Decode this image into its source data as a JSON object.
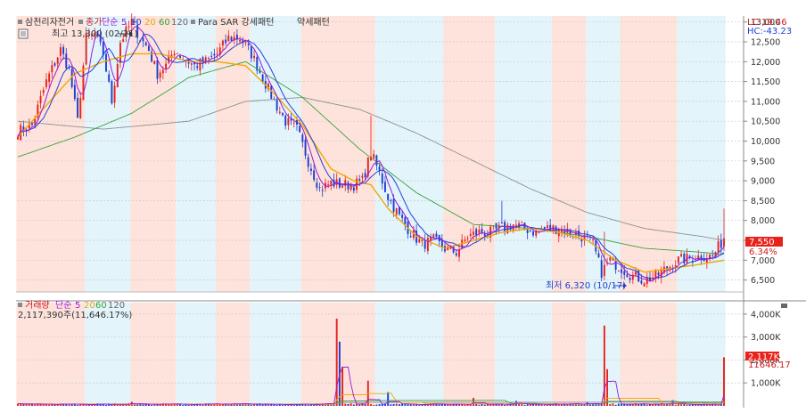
{
  "colors": {
    "band_pink": "#fde3dc",
    "band_blue": "#e3f4fb",
    "up": "#e8211b",
    "down": "#1c3fcf",
    "ma5": "#a018d6",
    "ma10": "#2740d8",
    "ma20": "#f0a800",
    "ma60": "#3aa13a",
    "ma120": "#8f8f8f",
    "grid": "#cccccc",
    "axis_text": "#333333",
    "price_tag": "#e8211b"
  },
  "price_panel": {
    "legend": {
      "stock_name": "삼천리자전거",
      "price_label": "종가",
      "ma_type": "단순",
      "periods": [
        "5",
        "10",
        "20",
        "60",
        "120"
      ],
      "para_sar": "Para SAR 강세패턴",
      "weak_pattern": "약세패턴"
    },
    "high_annotation": "최고 13,300 (02/21)",
    "low_annotation": "최저 6,320 (10/17)",
    "lc_label": "LC:19.46",
    "hc_label": "HC:-43.23",
    "current_price": "7,550",
    "change_pct": "6.34%",
    "y_ticks": [
      "13,000",
      "12,500",
      "12,000",
      "11,500",
      "11,000",
      "10,500",
      "10,000",
      "9,500",
      "9,000",
      "8,500",
      "8,000",
      "7,500",
      "7,000",
      "6,500"
    ]
  },
  "volume_panel": {
    "legend": {
      "title": "거래량",
      "ma_type": "단순",
      "periods": [
        "5",
        "20",
        "60",
        "120"
      ]
    },
    "current_volume": "2,117,390주(11,646.17%)",
    "volume_tag": "2,117K",
    "volume_pct_tag": "11646.17",
    "y_ticks": [
      "4,000K",
      "3,000K",
      "2,000K",
      "1,000K"
    ]
  },
  "chart_data": [
    {
      "type": "candlestick",
      "title": "삼천리자전거",
      "ylim": [
        6200,
        13150
      ],
      "y_ticks": [
        13000,
        12500,
        12000,
        11500,
        11000,
        10500,
        10000,
        9500,
        9000,
        8500,
        8000,
        7500,
        7000,
        6500
      ],
      "series_keypoints": {
        "close": [
          [
            0,
            10250
          ],
          [
            5,
            10400
          ],
          [
            10,
            11500
          ],
          [
            15,
            12300
          ],
          [
            18,
            11800
          ],
          [
            21,
            10500
          ],
          [
            24,
            12600
          ],
          [
            27,
            12700
          ],
          [
            30,
            12200
          ],
          [
            33,
            11000
          ],
          [
            36,
            12500
          ],
          [
            40,
            13000
          ],
          [
            43,
            12600
          ],
          [
            46,
            12300
          ],
          [
            49,
            11700
          ],
          [
            52,
            11900
          ],
          [
            55,
            12300
          ],
          [
            58,
            12100
          ],
          [
            62,
            11900
          ],
          [
            66,
            12000
          ],
          [
            70,
            12200
          ],
          [
            74,
            12600
          ],
          [
            78,
            12600
          ],
          [
            82,
            12200
          ],
          [
            86,
            11600
          ],
          [
            90,
            11000
          ],
          [
            94,
            10500
          ],
          [
            98,
            10300
          ],
          [
            102,
            9500
          ],
          [
            106,
            8800
          ],
          [
            110,
            8950
          ],
          [
            114,
            8900
          ],
          [
            118,
            8900
          ],
          [
            121,
            9000
          ],
          [
            124,
            9700
          ],
          [
            127,
            9200
          ],
          [
            130,
            8600
          ],
          [
            134,
            8100
          ],
          [
            138,
            7700
          ],
          [
            142,
            7400
          ],
          [
            146,
            7500
          ],
          [
            150,
            7300
          ],
          [
            154,
            7200
          ],
          [
            158,
            7600
          ],
          [
            162,
            7700
          ],
          [
            166,
            7700
          ],
          [
            170,
            7800
          ],
          [
            174,
            7900
          ],
          [
            178,
            7800
          ],
          [
            182,
            7700
          ],
          [
            186,
            7800
          ],
          [
            190,
            7800
          ],
          [
            194,
            7700
          ],
          [
            198,
            7600
          ],
          [
            202,
            7400
          ],
          [
            205,
            6700
          ],
          [
            208,
            7000
          ],
          [
            212,
            6800
          ],
          [
            216,
            6600
          ],
          [
            220,
            6500
          ],
          [
            224,
            6600
          ],
          [
            228,
            6800
          ],
          [
            232,
            7000
          ],
          [
            236,
            7050
          ],
          [
            240,
            7100
          ],
          [
            244,
            7100
          ],
          [
            248,
            7550
          ]
        ],
        "ma20": [
          [
            0,
            10100
          ],
          [
            10,
            10900
          ],
          [
            20,
            11700
          ],
          [
            30,
            12000
          ],
          [
            40,
            12200
          ],
          [
            50,
            12200
          ],
          [
            60,
            12000
          ],
          [
            70,
            12000
          ],
          [
            80,
            11900
          ],
          [
            90,
            11200
          ],
          [
            100,
            10400
          ],
          [
            110,
            9300
          ],
          [
            118,
            9000
          ],
          [
            124,
            8900
          ],
          [
            130,
            8300
          ],
          [
            140,
            7600
          ],
          [
            150,
            7300
          ],
          [
            160,
            7500
          ],
          [
            170,
            7700
          ],
          [
            180,
            7800
          ],
          [
            190,
            7700
          ],
          [
            200,
            7500
          ],
          [
            210,
            7000
          ],
          [
            220,
            6700
          ],
          [
            230,
            6800
          ],
          [
            240,
            6900
          ],
          [
            248,
            7000
          ]
        ],
        "ma60": [
          [
            0,
            9600
          ],
          [
            20,
            10100
          ],
          [
            40,
            10700
          ],
          [
            60,
            11600
          ],
          [
            80,
            12000
          ],
          [
            100,
            11100
          ],
          [
            120,
            9800
          ],
          [
            140,
            8700
          ],
          [
            160,
            7900
          ],
          [
            180,
            7800
          ],
          [
            200,
            7600
          ],
          [
            220,
            7300
          ],
          [
            240,
            7200
          ],
          [
            248,
            7150
          ]
        ],
        "ma120": [
          [
            0,
            10500
          ],
          [
            30,
            10300
          ],
          [
            60,
            10500
          ],
          [
            80,
            11000
          ],
          [
            100,
            11100
          ],
          [
            120,
            10800
          ],
          [
            140,
            10200
          ],
          [
            160,
            9500
          ],
          [
            180,
            8800
          ],
          [
            200,
            8200
          ],
          [
            220,
            7800
          ],
          [
            240,
            7600
          ],
          [
            248,
            7500
          ]
        ]
      }
    },
    {
      "type": "bar",
      "title": "거래량",
      "ylim": [
        0,
        4500
      ],
      "y_ticks": [
        4000,
        3000,
        2000,
        1000
      ],
      "spikes": [
        [
          40,
          180
        ],
        [
          112,
          3800
        ],
        [
          113,
          2800
        ],
        [
          114,
          1700
        ],
        [
          123,
          1100
        ],
        [
          130,
          600
        ],
        [
          160,
          350
        ],
        [
          175,
          220
        ],
        [
          200,
          180
        ],
        [
          206,
          3500
        ],
        [
          207,
          1600
        ],
        [
          230,
          250
        ],
        [
          248,
          2117
        ]
      ]
    }
  ]
}
